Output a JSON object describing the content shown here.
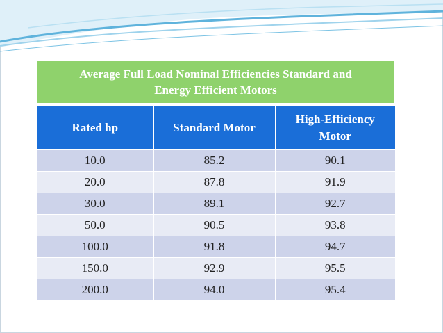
{
  "table": {
    "title_line1": "Average Full Load Nominal Efficiencies Standard and",
    "title_line2": "Energy Efficient Motors",
    "headers": [
      "Rated hp",
      "Standard Motor",
      "High-Efficiency Motor"
    ],
    "rows": [
      [
        "10.0",
        "85.2",
        "90.1"
      ],
      [
        "20.0",
        "87.8",
        "91.9"
      ],
      [
        "30.0",
        "89.1",
        "92.7"
      ],
      [
        "50.0",
        "90.5",
        "93.8"
      ],
      [
        "100.0",
        "91.8",
        "94.7"
      ],
      [
        "150.0",
        "92.9",
        "95.5"
      ],
      [
        "200.0",
        "94.0",
        "95.4"
      ]
    ]
  },
  "colors": {
    "title_bg": "#8fd26c",
    "header_bg": "#1a6ed8",
    "row_odd": "#cdd3ea",
    "row_even": "#e8ebf5",
    "swoosh": "#5fb3dc"
  }
}
